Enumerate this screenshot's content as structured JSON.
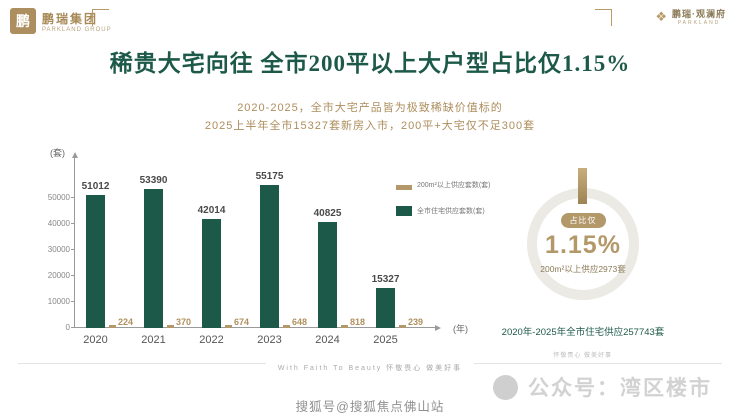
{
  "brand": {
    "left_logo": {
      "mark": "鹏",
      "cn": "鹏瑞集团",
      "en": "PARKLAND GROUP"
    },
    "right_logo": {
      "cn": "鹏瑞·观澜府",
      "en": "PARKLAND"
    }
  },
  "header": {
    "title": "稀贵大宅向往 全市200平以上大户型占比仅1.15%",
    "subtitle_line1": "2020-2025，全市大宅产品皆为极致稀缺价值标的",
    "subtitle_line2": "2025上半年全市15327套新房入市，200平+大宅仅不足300套"
  },
  "chart_data": {
    "type": "bar",
    "title": "",
    "categories": [
      "2020",
      "2021",
      "2022",
      "2023",
      "2024",
      "2025"
    ],
    "series": [
      {
        "name": "全市住宅供应套数(套)",
        "color": "#1d5948",
        "values": [
          51012,
          53390,
          42014,
          55175,
          40825,
          15327
        ]
      },
      {
        "name": "200m²以上供应套数(套)",
        "color": "#b3986a",
        "values": [
          224,
          370,
          674,
          648,
          818,
          239
        ]
      }
    ],
    "ylabel": "(套)",
    "xlabel": "(年)",
    "yticks": [
      0,
      10000,
      20000,
      30000,
      40000,
      50000
    ],
    "ylim": [
      0,
      57000
    ],
    "grid": false,
    "legend_position": "top-right"
  },
  "stat_panel": {
    "badge": "占比仅",
    "value": "1.15%",
    "description": "200m²以上供应2973套",
    "footnote": "2020年-2025年全市住宅供应257743套"
  },
  "footer": {
    "slogan_small": "怀敬畏心 做美好事",
    "divider_label": "With Faith To Beauty 怀敬畏心 做美好事",
    "watermark": "公众号：湾区楼市",
    "bottom_caption": "搜狐号@搜狐焦点佛山站"
  },
  "colors": {
    "primary_green": "#1d5948",
    "accent_gold": "#b3986a",
    "watermark_gray": "#d2d2d2"
  }
}
